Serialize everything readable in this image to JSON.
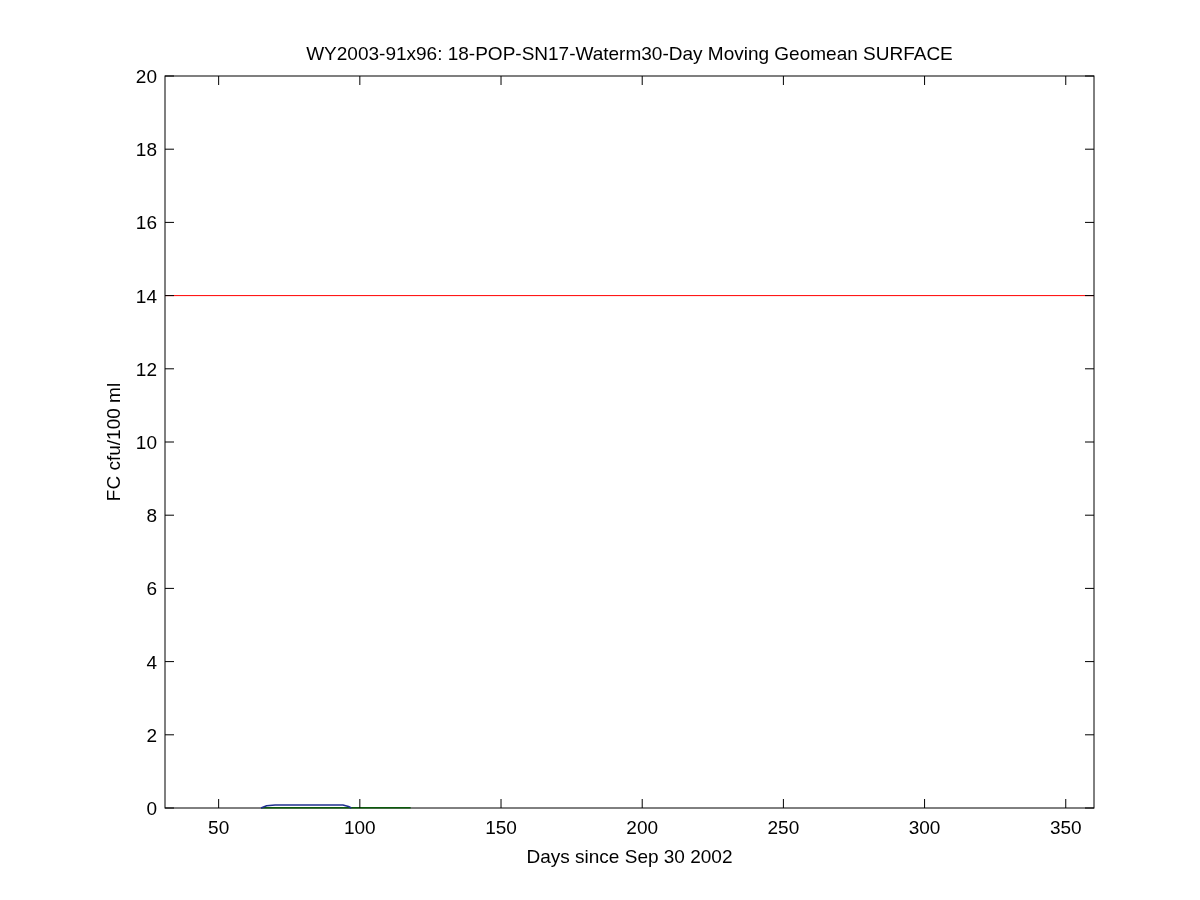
{
  "chart_data": {
    "type": "line",
    "title": "WY2003-91x96: 18-POP-SN17-Waterm30-Day Moving Geomean SURFACE",
    "xlabel": "Days since Sep 30 2002",
    "ylabel": "FC cfu/100 ml",
    "xlim": [
      31,
      360
    ],
    "ylim": [
      0,
      20
    ],
    "xticks": [
      50,
      100,
      150,
      200,
      250,
      300,
      350
    ],
    "yticks": [
      0,
      2,
      4,
      6,
      8,
      10,
      12,
      14,
      16,
      18,
      20
    ],
    "grid": false,
    "series": [
      {
        "color": "#1f2f8f",
        "x": [
          65,
          67,
          70,
          80,
          90,
          94,
          96,
          97
        ],
        "values": [
          0,
          0.06,
          0.08,
          0.08,
          0.08,
          0.08,
          0.04,
          0
        ]
      },
      {
        "color": "#0b5a0b",
        "x": [
          65,
          118
        ],
        "values": [
          0.01,
          0.01
        ]
      }
    ],
    "ref_lines": [
      {
        "axis": "y",
        "value": 14,
        "color": "#ff0000"
      }
    ]
  }
}
